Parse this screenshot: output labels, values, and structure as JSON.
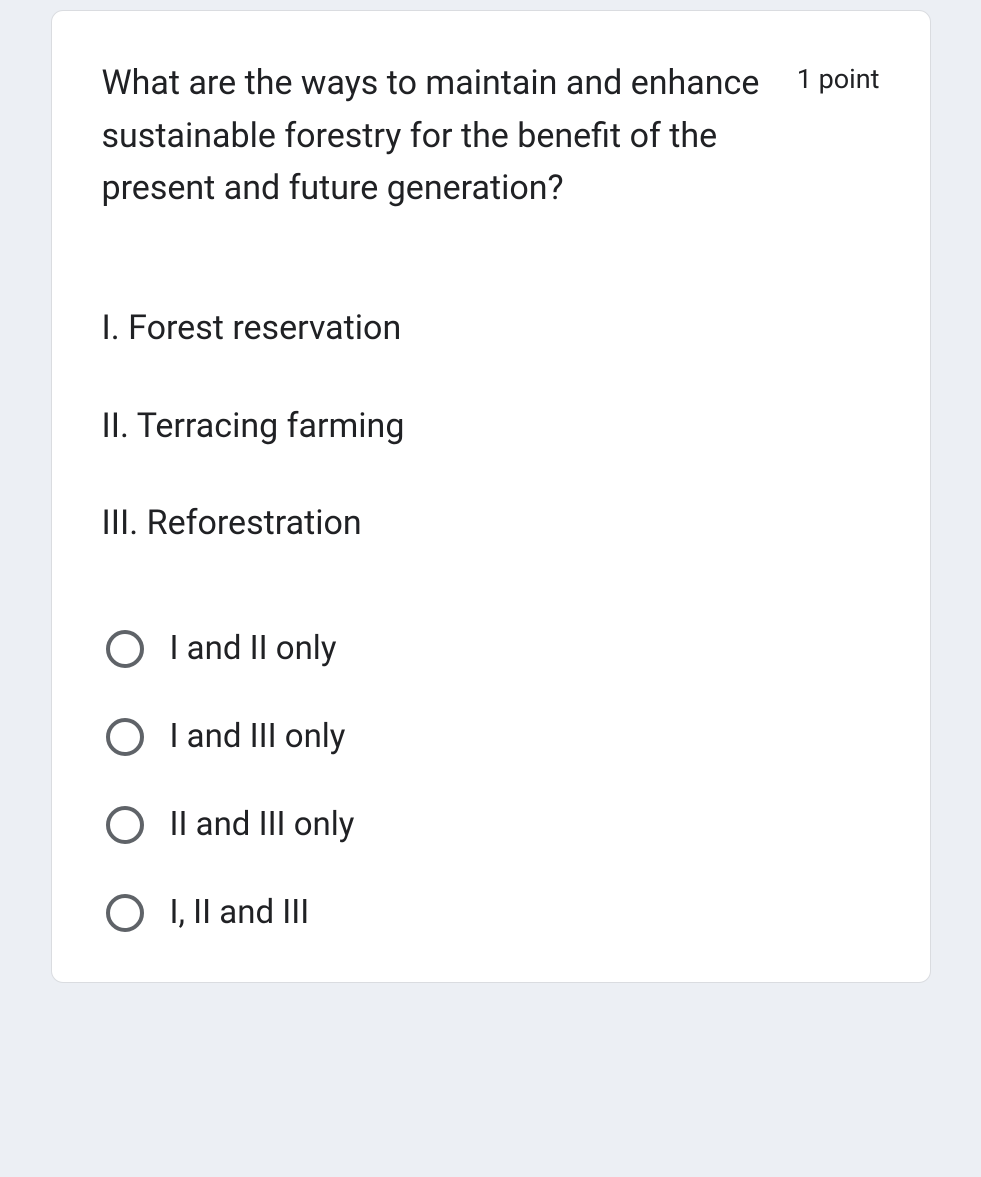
{
  "card": {
    "question": "What are the ways to maintain and enhance sustainable forestry for the benefit of the present and future generation?",
    "points_label": "1 point",
    "statements": [
      "I. Forest reservation",
      "II. Terracing farming",
      "III. Reforestration"
    ],
    "options": [
      {
        "label": "I and II only"
      },
      {
        "label": "I and III only"
      },
      {
        "label": "II and III only"
      },
      {
        "label": "I, II and III"
      }
    ]
  },
  "styling": {
    "background_color": "#eceff4",
    "card_background": "#ffffff",
    "card_border_color": "#dadce0",
    "card_border_radius": 12,
    "text_color": "#202124",
    "radio_border_color": "#5f6368",
    "question_fontsize": 34,
    "points_fontsize": 27,
    "statement_fontsize": 34,
    "option_fontsize": 33
  }
}
